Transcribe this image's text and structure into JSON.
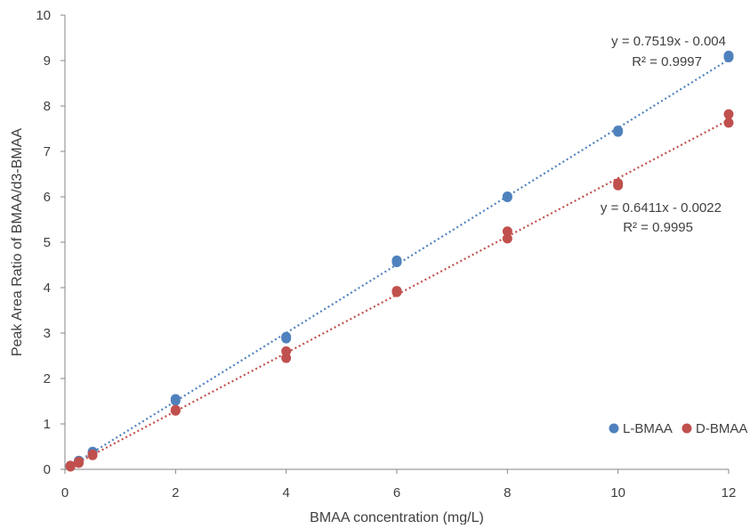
{
  "chart_data": {
    "type": "scatter",
    "title": "",
    "xlabel": "BMAA concentration (mg/L)",
    "ylabel": "Peak Area Ratio of BMAA/d3-BMAA",
    "xlim": [
      0,
      12
    ],
    "ylim": [
      0,
      10
    ],
    "x_ticks": [
      0,
      2,
      4,
      6,
      8,
      10,
      12
    ],
    "y_ticks": [
      0,
      1,
      2,
      3,
      4,
      5,
      6,
      7,
      8,
      9,
      10
    ],
    "grid": false,
    "legend_position": "bottom-right",
    "series": [
      {
        "name": "L-BMAA",
        "color": "#4F81BD",
        "points": [
          {
            "x": 0.1,
            "y": 0.07
          },
          {
            "x": 0.1,
            "y": 0.08
          },
          {
            "x": 0.25,
            "y": 0.18
          },
          {
            "x": 0.25,
            "y": 0.19
          },
          {
            "x": 0.5,
            "y": 0.37
          },
          {
            "x": 0.5,
            "y": 0.39
          },
          {
            "x": 2,
            "y": 1.51
          },
          {
            "x": 2,
            "y": 1.55
          },
          {
            "x": 4,
            "y": 2.88
          },
          {
            "x": 4,
            "y": 2.92
          },
          {
            "x": 6,
            "y": 4.56
          },
          {
            "x": 6,
            "y": 4.6
          },
          {
            "x": 8,
            "y": 5.99
          },
          {
            "x": 8,
            "y": 6.01
          },
          {
            "x": 10,
            "y": 7.43
          },
          {
            "x": 10,
            "y": 7.46
          },
          {
            "x": 12,
            "y": 9.07
          },
          {
            "x": 12,
            "y": 9.11
          }
        ],
        "trendline": {
          "slope": 0.7519,
          "intercept": -0.004,
          "x_range": [
            0.1,
            12
          ]
        },
        "equation": "y = 0.7519x - 0.004",
        "r2": "R² = 0.9997"
      },
      {
        "name": "D-BMAA",
        "color": "#C0504D",
        "points": [
          {
            "x": 0.1,
            "y": 0.06
          },
          {
            "x": 0.1,
            "y": 0.08
          },
          {
            "x": 0.25,
            "y": 0.14
          },
          {
            "x": 0.25,
            "y": 0.17
          },
          {
            "x": 0.5,
            "y": 0.31
          },
          {
            "x": 0.5,
            "y": 0.33
          },
          {
            "x": 2,
            "y": 1.29
          },
          {
            "x": 2,
            "y": 1.31
          },
          {
            "x": 4,
            "y": 2.45
          },
          {
            "x": 4,
            "y": 2.6
          },
          {
            "x": 6,
            "y": 3.9
          },
          {
            "x": 6,
            "y": 3.93
          },
          {
            "x": 8,
            "y": 5.08
          },
          {
            "x": 8,
            "y": 5.24
          },
          {
            "x": 10,
            "y": 6.25
          },
          {
            "x": 10,
            "y": 6.3
          },
          {
            "x": 12,
            "y": 7.63
          },
          {
            "x": 12,
            "y": 7.82
          }
        ],
        "trendline": {
          "slope": 0.6411,
          "intercept": -0.0022,
          "x_range": [
            0.1,
            12
          ]
        },
        "equation": "y = 0.6411x - 0.0022",
        "r2": "R² = 0.9995"
      }
    ]
  }
}
